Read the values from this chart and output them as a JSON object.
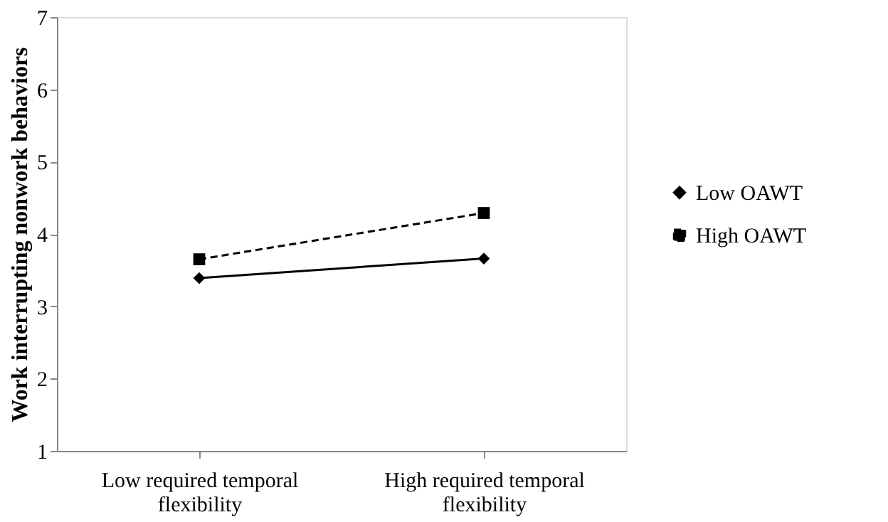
{
  "chart_data": {
    "type": "line",
    "ylabel": "Work interrupting nonwork behaviors",
    "categories": [
      "Low required temporal flexibility",
      "High required temporal flexibility"
    ],
    "series": [
      {
        "name": "Low OAWT",
        "color": "#000000",
        "values": [
          3.39,
          3.66
        ],
        "marker": "diamond",
        "line_style": "solid"
      },
      {
        "name": "High OAWT",
        "color": "#000000",
        "values": [
          3.65,
          4.29
        ],
        "marker": "square",
        "line_style": "dashed"
      }
    ],
    "ylim": [
      1,
      7
    ],
    "yticks": [
      1,
      2,
      3,
      4,
      5,
      6,
      7
    ],
    "grid": false,
    "legend": "right"
  }
}
